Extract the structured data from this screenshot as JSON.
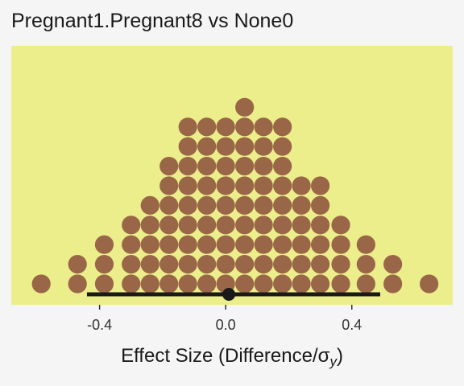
{
  "chart_data": {
    "type": "dotplot",
    "title": "Pregnant1.Pregnant8 vs None0",
    "xlabel_prefix": "Effect Size (Difference/",
    "xlabel_sigma": "σ",
    "xlabel_sub": "y",
    "xlabel_suffix": ")",
    "xlim": [
      -0.68,
      0.72
    ],
    "xticks": [
      {
        "value": -0.4,
        "label": "-0.4"
      },
      {
        "value": 0.0,
        "label": "0.0"
      },
      {
        "value": 0.4,
        "label": "0.4"
      }
    ],
    "columns": [
      {
        "x": -0.585,
        "count": 1
      },
      {
        "x": -0.47,
        "count": 2
      },
      {
        "x": -0.385,
        "count": 3
      },
      {
        "x": -0.3,
        "count": 4
      },
      {
        "x": -0.24,
        "count": 5
      },
      {
        "x": -0.18,
        "count": 7
      },
      {
        "x": -0.12,
        "count": 9
      },
      {
        "x": -0.06,
        "count": 9
      },
      {
        "x": 0.0,
        "count": 9
      },
      {
        "x": 0.06,
        "count": 10
      },
      {
        "x": 0.12,
        "count": 9
      },
      {
        "x": 0.18,
        "count": 9
      },
      {
        "x": 0.24,
        "count": 6
      },
      {
        "x": 0.3,
        "count": 6
      },
      {
        "x": 0.365,
        "count": 4
      },
      {
        "x": 0.445,
        "count": 3
      },
      {
        "x": 0.53,
        "count": 2
      },
      {
        "x": 0.645,
        "count": 1
      }
    ],
    "interval": {
      "low": -0.44,
      "high": 0.49,
      "point": 0.01
    },
    "colors": {
      "panel": "#ecee8b",
      "dots": "#9a6648",
      "interval": "#1a1a1a",
      "background": "#f5f5f5"
    }
  }
}
